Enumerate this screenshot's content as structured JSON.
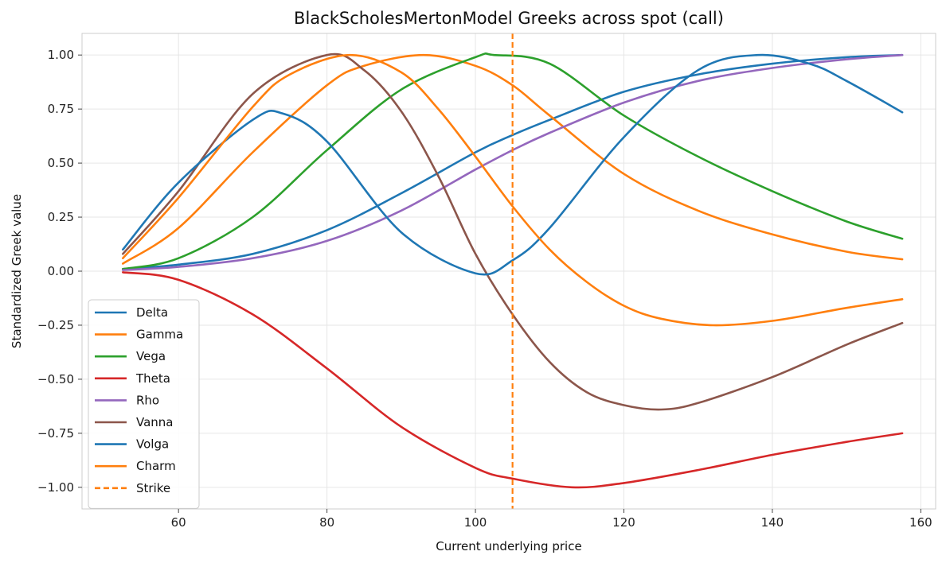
{
  "chart_data": {
    "type": "line",
    "title": "BlackScholesMertonModel Greeks across spot (call)",
    "xlabel": "Current underlying price",
    "ylabel": "Standardized Greek value",
    "xlim": [
      47,
      162
    ],
    "ylim": [
      -1.1,
      1.1
    ],
    "xticks": [
      60,
      80,
      100,
      120,
      140,
      160
    ],
    "yticks": [
      -1.0,
      -0.75,
      -0.5,
      -0.25,
      0.0,
      0.25,
      0.5,
      0.75,
      1.0
    ],
    "xtick_labels": [
      "60",
      "80",
      "100",
      "120",
      "140",
      "160"
    ],
    "ytick_labels": [
      "−1.00",
      "−0.75",
      "−0.50",
      "−0.25",
      "0.00",
      "0.25",
      "0.50",
      "0.75",
      "1.00"
    ],
    "grid": true,
    "legend_position": "lower-left",
    "strike": {
      "name": "Strike",
      "x": 105,
      "color": "#ff7f0e",
      "style": "dashed"
    },
    "series": [
      {
        "name": "Delta",
        "color": "#1f77b4",
        "x": [
          52.5,
          60,
          70,
          80,
          90,
          100,
          105,
          110,
          120,
          130,
          140,
          150,
          157.5
        ],
        "y": [
          0.01,
          0.03,
          0.08,
          0.19,
          0.36,
          0.55,
          0.63,
          0.7,
          0.83,
          0.91,
          0.96,
          0.99,
          1.0
        ]
      },
      {
        "name": "Gamma",
        "color": "#ff7f0e",
        "x": [
          52.5,
          60,
          70,
          80,
          85,
          93,
          100,
          105,
          110,
          120,
          130,
          140,
          150,
          157.5
        ],
        "y": [
          0.035,
          0.2,
          0.55,
          0.86,
          0.95,
          1.0,
          0.95,
          0.86,
          0.72,
          0.45,
          0.28,
          0.17,
          0.09,
          0.055
        ]
      },
      {
        "name": "Vega",
        "color": "#2ca02c",
        "x": [
          52.5,
          60,
          70,
          80,
          90,
          100,
          102.5,
          110,
          120,
          130,
          140,
          150,
          157.5
        ],
        "y": [
          0.01,
          0.06,
          0.25,
          0.56,
          0.84,
          0.99,
          1.0,
          0.96,
          0.72,
          0.53,
          0.37,
          0.23,
          0.15
        ]
      },
      {
        "name": "Theta",
        "color": "#d62728",
        "x": [
          52.5,
          60,
          70,
          80,
          90,
          100,
          105,
          113,
          120,
          130,
          140,
          150,
          157.5
        ],
        "y": [
          -0.005,
          -0.04,
          -0.2,
          -0.45,
          -0.72,
          -0.91,
          -0.96,
          -1.0,
          -0.98,
          -0.92,
          -0.85,
          -0.79,
          -0.75
        ]
      },
      {
        "name": "Rho",
        "color": "#9467bd",
        "x": [
          52.5,
          60,
          70,
          80,
          90,
          100,
          105,
          110,
          120,
          130,
          140,
          150,
          157.5
        ],
        "y": [
          0.005,
          0.02,
          0.06,
          0.14,
          0.28,
          0.47,
          0.56,
          0.64,
          0.78,
          0.88,
          0.94,
          0.98,
          1.0
        ]
      },
      {
        "name": "Vanna",
        "color": "#8c564b",
        "x": [
          52.5,
          60,
          70,
          80,
          85,
          90,
          95,
          100,
          105,
          110,
          115,
          120,
          125,
          130,
          140,
          150,
          157.5
        ],
        "y": [
          0.08,
          0.37,
          0.82,
          1.0,
          0.93,
          0.74,
          0.44,
          0.08,
          -0.2,
          -0.42,
          -0.56,
          -0.62,
          -0.64,
          -0.61,
          -0.49,
          -0.34,
          -0.24
        ]
      },
      {
        "name": "Volga",
        "color": "#1f77b4",
        "x": [
          52.5,
          60,
          70,
          74,
          80,
          90,
          100,
          105,
          110,
          120,
          130,
          138,
          145,
          150,
          157.5
        ],
        "y": [
          0.1,
          0.41,
          0.7,
          0.73,
          0.6,
          0.18,
          -0.01,
          0.05,
          0.2,
          0.62,
          0.93,
          1.0,
          0.96,
          0.88,
          0.735
        ]
      },
      {
        "name": "Charm",
        "color": "#ff7f0e",
        "x": [
          52.5,
          60,
          70,
          75,
          83,
          90,
          95,
          100,
          105,
          110,
          115,
          120,
          125,
          132,
          140,
          150,
          157.5
        ],
        "y": [
          0.06,
          0.34,
          0.76,
          0.91,
          1.0,
          0.92,
          0.75,
          0.53,
          0.3,
          0.1,
          -0.05,
          -0.16,
          -0.22,
          -0.25,
          -0.23,
          -0.17,
          -0.13
        ]
      }
    ]
  }
}
